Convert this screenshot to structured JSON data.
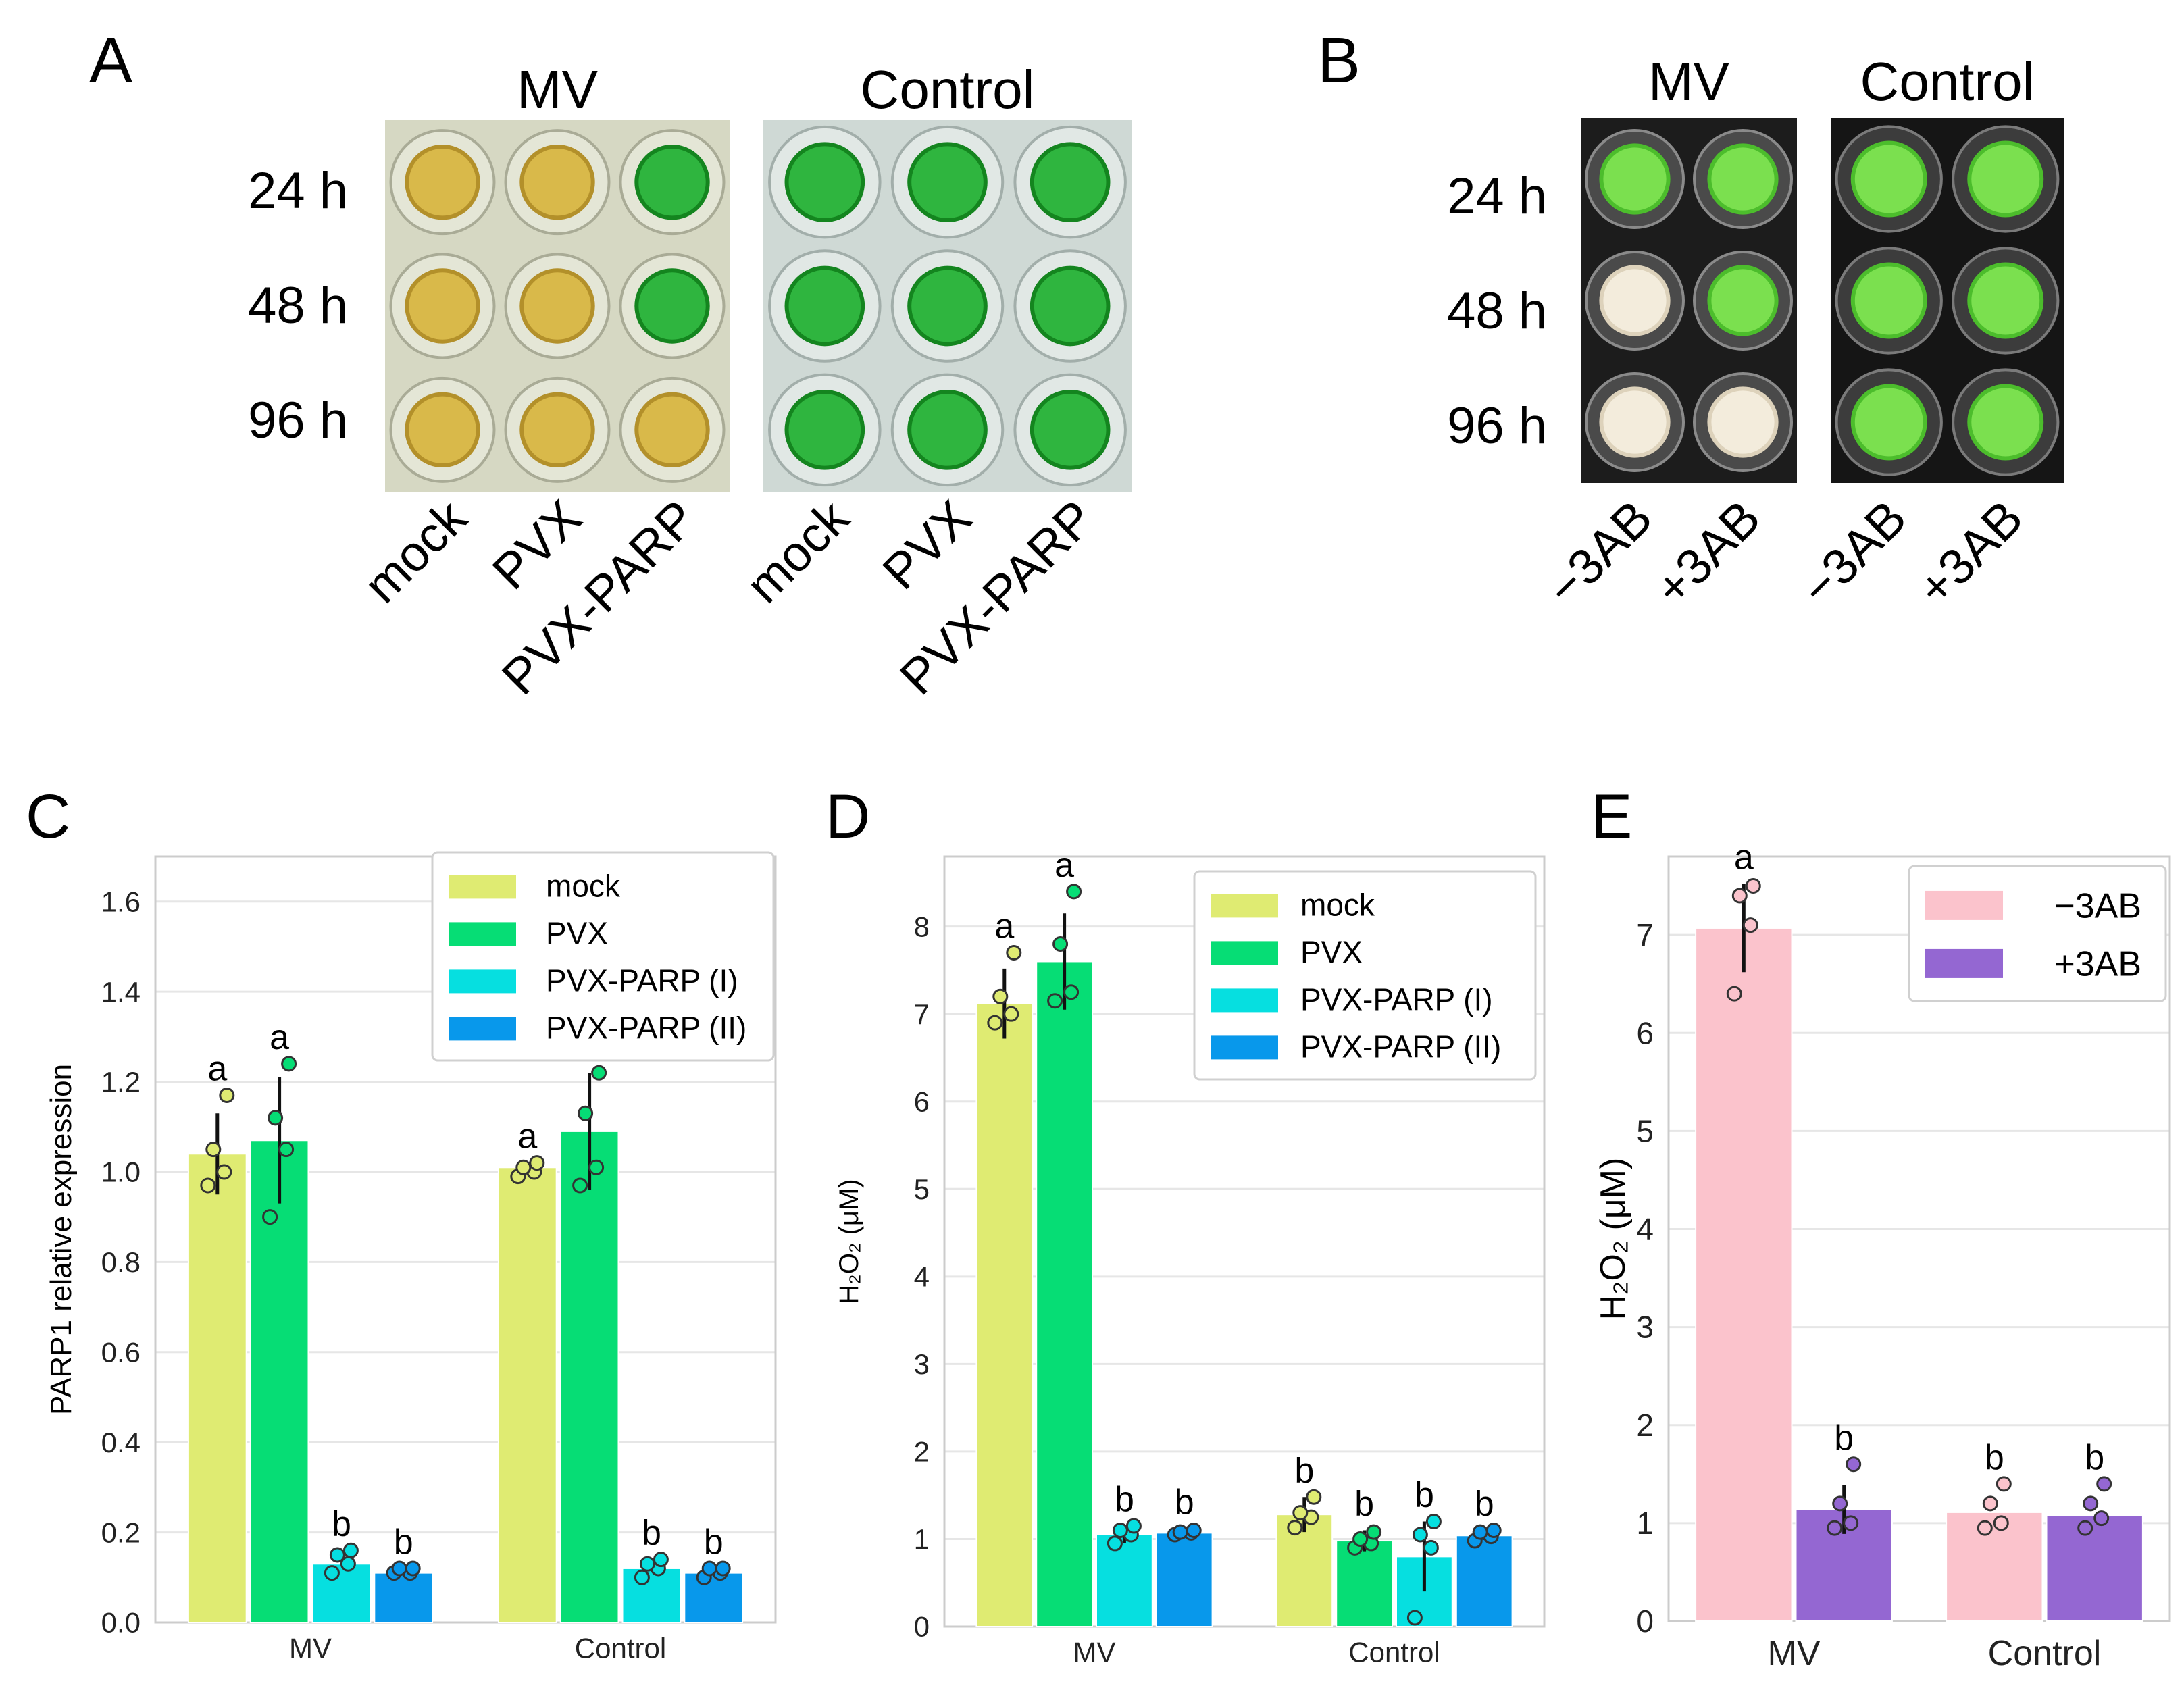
{
  "colors": {
    "mock": "#dfeb72",
    "PVX": "#06dd75",
    "PARP_I": "#06dfe0",
    "PARP_II": "#0898eb",
    "minus3AB": "#fbc3cc",
    "plus3AB": "#9467d2",
    "axis": "#cccccc",
    "grid": "#e6e6e6"
  },
  "panels": {
    "A": {
      "letter": "A",
      "headers": [
        "MV",
        "Control"
      ],
      "rows": [
        "24 h",
        "48 h",
        "96 h"
      ],
      "columns": [
        "mock",
        "PVX",
        "PVX-PARP",
        "mock",
        "PVX",
        "PVX-PARP"
      ],
      "wells": {
        "MV": [
          [
            "yellow",
            "yellow",
            "green"
          ],
          [
            "yellow",
            "yellow",
            "green"
          ],
          [
            "yellow",
            "yellow",
            "yellow"
          ]
        ],
        "Control": [
          [
            "green",
            "green",
            "green"
          ],
          [
            "green",
            "green",
            "green"
          ],
          [
            "green",
            "green",
            "green"
          ]
        ]
      }
    },
    "B": {
      "letter": "B",
      "headers": [
        "MV",
        "Control"
      ],
      "rows": [
        "24 h",
        "48 h",
        "96 h"
      ],
      "columns": [
        "−3AB",
        "+3AB",
        "−3AB",
        "+3AB"
      ],
      "wells": {
        "MV": [
          [
            "green",
            "green"
          ],
          [
            "white",
            "green"
          ],
          [
            "white",
            "white"
          ]
        ],
        "Control": [
          [
            "green",
            "green"
          ],
          [
            "green",
            "green"
          ],
          [
            "green",
            "green"
          ]
        ]
      }
    }
  },
  "chart_data": [
    {
      "id": "C",
      "letter": "C",
      "type": "bar",
      "categories": [
        "MV",
        "Control"
      ],
      "ylabel": "PARP1 relative expression",
      "ylim": [
        0,
        1.7
      ],
      "yticks": [
        "0.0",
        "0.2",
        "0.4",
        "0.6",
        "0.8",
        "1.0",
        "1.2",
        "1.4",
        "1.6"
      ],
      "legend_position": "top-right",
      "series": [
        {
          "name": "mock",
          "color": "#dfeb72",
          "values": [
            1.04,
            1.01
          ],
          "err": [
            0.09,
            0.0
          ],
          "points": [
            [
              0.97,
              1.0,
              1.05,
              1.17
            ],
            [
              0.99,
              1.0,
              1.01,
              1.02
            ]
          ],
          "letters": [
            "a",
            "a"
          ]
        },
        {
          "name": "PVX",
          "color": "#06dd75",
          "values": [
            1.07,
            1.09
          ],
          "err": [
            0.14,
            0.13
          ],
          "points": [
            [
              0.9,
              1.05,
              1.12,
              1.24
            ],
            [
              0.97,
              1.01,
              1.13,
              1.22
            ]
          ],
          "letters": [
            "a",
            "a"
          ]
        },
        {
          "name": "PVX-PARP (I)",
          "color": "#06dfe0",
          "values": [
            0.13,
            0.12
          ],
          "err": [
            0.0,
            0.0
          ],
          "points": [
            [
              0.11,
              0.13,
              0.15,
              0.16
            ],
            [
              0.1,
              0.12,
              0.13,
              0.14
            ]
          ],
          "letters": [
            "b",
            "b"
          ]
        },
        {
          "name": "PVX-PARP (II)",
          "color": "#0898eb",
          "values": [
            0.11,
            0.11
          ],
          "err": [
            0.0,
            0.0
          ],
          "points": [
            [
              0.11,
              0.11,
              0.12,
              0.12
            ],
            [
              0.1,
              0.11,
              0.12,
              0.12
            ]
          ],
          "letters": [
            "b",
            "b"
          ]
        }
      ]
    },
    {
      "id": "D",
      "letter": "D",
      "type": "bar",
      "categories": [
        "MV",
        "Control"
      ],
      "ylabel": "H₂O₂ (μM)",
      "ylim": [
        0,
        8.8
      ],
      "yticks": [
        "0",
        "1",
        "2",
        "3",
        "4",
        "5",
        "6",
        "7",
        "8"
      ],
      "legend_position": "top-right",
      "series": [
        {
          "name": "mock",
          "color": "#dfeb72",
          "values": [
            7.12,
            1.28
          ],
          "err": [
            0.4,
            0.2
          ],
          "points": [
            [
              6.9,
              7.0,
              7.2,
              7.7
            ],
            [
              1.13,
              1.25,
              1.3,
              1.48
            ]
          ],
          "letters": [
            "a",
            "b"
          ]
        },
        {
          "name": "PVX",
          "color": "#06dd75",
          "values": [
            7.6,
            0.98
          ],
          "err": [
            0.55,
            0.12
          ],
          "points": [
            [
              7.15,
              7.25,
              7.8,
              8.4
            ],
            [
              0.9,
              0.95,
              1.0,
              1.08
            ]
          ],
          "letters": [
            "a",
            "b"
          ]
        },
        {
          "name": "PVX-PARP (I)",
          "color": "#06dfe0",
          "values": [
            1.05,
            0.8
          ],
          "err": [
            0.1,
            0.4
          ],
          "points": [
            [
              0.95,
              1.05,
              1.1,
              1.15
            ],
            [
              0.1,
              0.9,
              1.05,
              1.2
            ]
          ],
          "letters": [
            "b",
            "b"
          ]
        },
        {
          "name": "PVX-PARP (II)",
          "color": "#0898eb",
          "values": [
            1.07,
            1.04
          ],
          "err": [
            0.05,
            0.05
          ],
          "points": [
            [
              1.05,
              1.07,
              1.08,
              1.1
            ],
            [
              0.98,
              1.03,
              1.08,
              1.1
            ]
          ],
          "letters": [
            "b",
            "b"
          ]
        }
      ]
    },
    {
      "id": "E",
      "letter": "E",
      "type": "bar",
      "categories": [
        "MV",
        "Control"
      ],
      "ylabel": "H₂O₂ (μM)",
      "ylim": [
        0,
        7.8
      ],
      "yticks": [
        "0",
        "1",
        "2",
        "3",
        "4",
        "5",
        "6",
        "7"
      ],
      "legend_position": "top-right",
      "series": [
        {
          "name": "−3AB",
          "color": "#fbc3cc",
          "values": [
            7.07,
            1.11
          ],
          "err": [
            0.45,
            0.0
          ],
          "points": [
            [
              6.4,
              7.1,
              7.4,
              7.5
            ],
            [
              0.95,
              1.0,
              1.2,
              1.4
            ]
          ],
          "letters": [
            "a",
            "b"
          ]
        },
        {
          "name": "+3AB",
          "color": "#9467d2",
          "values": [
            1.14,
            1.08
          ],
          "err": [
            0.25,
            0.0
          ],
          "points": [
            [
              0.95,
              1.0,
              1.2,
              1.6
            ],
            [
              0.95,
              1.05,
              1.2,
              1.4
            ]
          ],
          "letters": [
            "b",
            "b"
          ]
        }
      ]
    }
  ]
}
